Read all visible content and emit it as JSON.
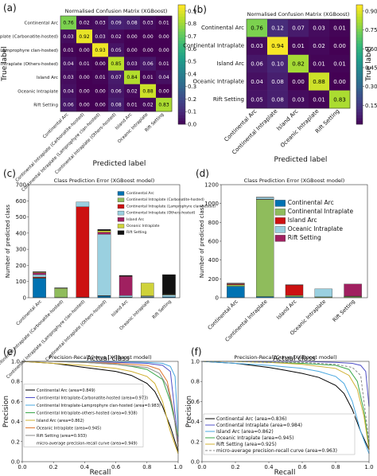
{
  "panel_labels": [
    "(a)",
    "(b)",
    "(c)",
    "(d)",
    "(e)",
    "(f)"
  ],
  "colors": {
    "viridis": [
      "#440154",
      "#482878",
      "#3e4989",
      "#31688e",
      "#26828e",
      "#1f9e89",
      "#35b779",
      "#6ece58",
      "#b5de2b",
      "#fde725"
    ],
    "bars_c": [
      "#0072b2",
      "#8fbc5c",
      "#cc1111",
      "#9ad0e0",
      "#a02060",
      "#cfd23a",
      "#111111"
    ],
    "bars_d": [
      "#0072b2",
      "#8fbc5c",
      "#cc1111",
      "#9ad0e0",
      "#a02060"
    ],
    "curves_e": [
      "#000000",
      "#5050c8",
      "#49a8e0",
      "#3aa84a",
      "#d0b030",
      "#e07830",
      "#888888"
    ],
    "curves_f": [
      "#000000",
      "#5050c8",
      "#49a8e0",
      "#3aa84a",
      "#d0b030",
      "#888888"
    ]
  },
  "chart_data": [
    {
      "panel": "(a)",
      "type": "heatmap",
      "title": "Normalised Confusion Matrix (XGBoost)",
      "xlabel": "Predicted label",
      "ylabel": "True label",
      "labels": [
        "Continental Arc",
        "Continental Intraplate (Carbonatite-hosted)",
        "Continental Intraplate (Lamprophyre clan-hosted)",
        "Continental Intraplate (Others-hosted)",
        "Island Arc",
        "Oceanic Intraplate",
        "Rift Setting"
      ],
      "matrix": [
        [
          0.76,
          0.02,
          0.03,
          0.09,
          0.08,
          0.03,
          0.01
        ],
        [
          0.03,
          0.92,
          0.03,
          0.02,
          0.0,
          0.0,
          0.0
        ],
        [
          0.01,
          0.0,
          0.93,
          0.05,
          0.0,
          0.0,
          0.0
        ],
        [
          0.04,
          0.01,
          0.0,
          0.85,
          0.03,
          0.06,
          0.01
        ],
        [
          0.03,
          0.0,
          0.01,
          0.07,
          0.84,
          0.01,
          0.04
        ],
        [
          0.04,
          0.0,
          0.0,
          0.06,
          0.02,
          0.88,
          0.0
        ],
        [
          0.06,
          0.0,
          0.0,
          0.08,
          0.01,
          0.02,
          0.83
        ]
      ],
      "colorbar_ticks": [
        "0.9",
        "0.8",
        "0.7",
        "0.6",
        "0.5",
        "0.4",
        "0.3",
        "0.2",
        "0.1",
        "0.0"
      ],
      "vlim": [
        0,
        0.95
      ]
    },
    {
      "panel": "(b)",
      "type": "heatmap",
      "title": "Normalised Confusion Matrix (XGBoost)",
      "xlabel": "Predicted label",
      "ylabel": "True label",
      "labels": [
        "Continental Arc",
        "Continental Intraplate",
        "Island Arc",
        "Oceanic Intraplate",
        "Rift Setting"
      ],
      "matrix": [
        [
          0.76,
          0.12,
          0.07,
          0.03,
          0.01
        ],
        [
          0.03,
          0.94,
          0.01,
          0.02,
          0.0
        ],
        [
          0.06,
          0.1,
          0.82,
          0.01,
          0.01
        ],
        [
          0.04,
          0.08,
          0.0,
          0.88,
          0.0
        ],
        [
          0.05,
          0.08,
          0.03,
          0.01,
          0.83
        ]
      ],
      "colorbar_ticks": [
        "0.90",
        "0.75",
        "0.60",
        "0.45",
        "0.30",
        "0.15"
      ],
      "vlim": [
        0,
        0.95
      ]
    },
    {
      "panel": "(c)",
      "type": "bar",
      "title": "Class Prediction Error (XGBoost model)",
      "xlabel": "Actual class",
      "ylabel": "Number of predicted class",
      "categories": [
        "Continental Arc",
        "Continental Intraplate (Carbonatite-hosted)",
        "Continental Intraplate (Lamprophyre clan-hosted)",
        "Continental Intraplate (Others-hosted)",
        "Island Arc",
        "Oceanic Intraplate",
        "Rift Setting"
      ],
      "series": [
        {
          "name": "Continental Arc",
          "values": [
            120,
            2,
            3,
            10,
            3,
            3,
            5
          ]
        },
        {
          "name": "Continental Intraplate (Carbonatite-hosted)",
          "values": [
            3,
            56,
            0,
            2,
            0,
            0,
            0
          ]
        },
        {
          "name": "Continental Intraplate (Lamprophyre clan-hosted)",
          "values": [
            5,
            2,
            560,
            1,
            1,
            0,
            0
          ]
        },
        {
          "name": "Continental Intraplate (Others-hosted)",
          "values": [
            15,
            2,
            30,
            380,
            10,
            6,
            12
          ]
        },
        {
          "name": "Island Arc",
          "values": [
            12,
            0,
            0,
            12,
            118,
            2,
            1
          ]
        },
        {
          "name": "Oceanic Intraplate",
          "values": [
            4,
            0,
            0,
            10,
            1,
            80,
            3
          ]
        },
        {
          "name": "Rift Setting",
          "values": [
            2,
            0,
            0,
            8,
            5,
            0,
            122
          ]
        }
      ],
      "yticks": [
        0,
        100,
        200,
        300,
        400,
        500,
        600,
        700
      ],
      "ylim": [
        0,
        700
      ]
    },
    {
      "panel": "(d)",
      "type": "bar",
      "title": "Class Prediction Error (XGBoost model)",
      "xlabel": "Actual class",
      "ylabel": "Number of predicted class",
      "categories": [
        "Continental Arc",
        "Continental Intraplate",
        "Island Arc",
        "Oceanic Intraplate",
        "Rift Setting"
      ],
      "series": [
        {
          "name": "Continental Arc",
          "values": [
            120,
            12,
            10,
            2,
            3
          ]
        },
        {
          "name": "Continental Intraplate",
          "values": [
            18,
            1030,
            15,
            7,
            10
          ]
        },
        {
          "name": "Island Arc",
          "values": [
            10,
            3,
            110,
            0,
            3
          ]
        },
        {
          "name": "Oceanic Intraplate",
          "values": [
            5,
            20,
            1,
            85,
            1
          ]
        },
        {
          "name": "Rift Setting",
          "values": [
            2,
            2,
            2,
            0,
            128
          ]
        }
      ],
      "yticks": [
        0,
        200,
        400,
        600,
        800,
        1000,
        1200
      ],
      "ylim": [
        0,
        1200
      ]
    },
    {
      "panel": "(e)",
      "type": "line",
      "title": "Precision-Recall Curve (XGBoost model)",
      "xlabel": "Recall",
      "ylabel": "Precision",
      "xticks": [
        "0.0",
        "0.2",
        "0.4",
        "0.6",
        "0.8",
        "1.0"
      ],
      "yticks": [
        "0.0",
        "0.2",
        "0.4",
        "0.6",
        "0.8",
        "1.0"
      ],
      "xlim": [
        0,
        1
      ],
      "ylim": [
        0,
        1
      ],
      "legend_position": "lower left",
      "series": [
        {
          "name": "Continental Arc (area=0.849)",
          "x": [
            0,
            0.1,
            0.2,
            0.3,
            0.4,
            0.5,
            0.6,
            0.7,
            0.8,
            0.85,
            0.9,
            0.95,
            1.0
          ],
          "y": [
            1,
            0.99,
            0.98,
            0.96,
            0.94,
            0.92,
            0.9,
            0.86,
            0.78,
            0.7,
            0.55,
            0.35,
            0.1
          ]
        },
        {
          "name": "Continental Intraplate-Carbonatite-hosted (area=0.973)",
          "x": [
            0,
            0.2,
            0.4,
            0.6,
            0.8,
            0.9,
            0.95,
            1.0
          ],
          "y": [
            1,
            1,
            1,
            0.99,
            0.98,
            0.96,
            0.9,
            0.2
          ]
        },
        {
          "name": "Continental Intraplate-Lamprophyre clan-hosted (area=0.983)",
          "x": [
            0,
            0.2,
            0.4,
            0.6,
            0.8,
            0.9,
            0.95,
            0.98,
            1.0
          ],
          "y": [
            1,
            1,
            1,
            1,
            0.99,
            0.98,
            0.95,
            0.85,
            0.3
          ]
        },
        {
          "name": "Continental Intraplate-others-hosted (area=0.938)",
          "x": [
            0,
            0.2,
            0.4,
            0.6,
            0.7,
            0.8,
            0.9,
            0.95,
            1.0
          ],
          "y": [
            1,
            1,
            0.99,
            0.97,
            0.95,
            0.92,
            0.82,
            0.6,
            0.25
          ]
        },
        {
          "name": "Island Arc (area=0.862)",
          "x": [
            0,
            0.2,
            0.4,
            0.6,
            0.7,
            0.8,
            0.85,
            0.9,
            0.95,
            1.0
          ],
          "y": [
            1,
            0.98,
            0.96,
            0.93,
            0.9,
            0.85,
            0.78,
            0.6,
            0.3,
            0.08
          ]
        },
        {
          "name": "Oceanic Intraplate (area=0.945)",
          "x": [
            0,
            0.2,
            0.4,
            0.6,
            0.8,
            0.88,
            0.93,
            0.97,
            1.0
          ],
          "y": [
            1,
            1,
            0.99,
            0.98,
            0.96,
            0.92,
            0.8,
            0.5,
            0.15
          ]
        },
        {
          "name": "Rift Setting (area=0.933)",
          "x": [
            0,
            0.2,
            0.4,
            0.6,
            0.8,
            0.88,
            0.93,
            0.97,
            1.0
          ],
          "y": [
            1,
            1,
            0.99,
            0.97,
            0.94,
            0.88,
            0.75,
            0.5,
            0.12
          ]
        },
        {
          "name": "micro-average precision-recall curve (area=0.949)",
          "x": [
            0,
            0.2,
            0.4,
            0.6,
            0.8,
            0.9,
            0.95,
            1.0
          ],
          "y": [
            1,
            0.99,
            0.99,
            0.98,
            0.96,
            0.92,
            0.82,
            0.15
          ]
        }
      ]
    },
    {
      "panel": "(f)",
      "type": "line",
      "title": "Precision-Recall Curve (XGBoost model)",
      "xlabel": "Recall",
      "ylabel": "Precision",
      "xticks": [
        "0.0",
        "0.2",
        "0.4",
        "0.6",
        "0.8",
        "1.0"
      ],
      "yticks": [
        "0.0",
        "0.2",
        "0.4",
        "0.6",
        "0.8",
        "1.0"
      ],
      "xlim": [
        0,
        1
      ],
      "ylim": [
        0,
        1
      ],
      "legend_position": "lower left",
      "series": [
        {
          "name": "Continental Arc (area=0.836)",
          "x": [
            0,
            0.1,
            0.2,
            0.3,
            0.4,
            0.5,
            0.6,
            0.7,
            0.8,
            0.85,
            0.9,
            0.95,
            1.0
          ],
          "y": [
            1,
            0.99,
            0.98,
            0.96,
            0.94,
            0.91,
            0.88,
            0.84,
            0.76,
            0.68,
            0.52,
            0.3,
            0.12
          ]
        },
        {
          "name": "Continental Intraplate (area=0.984)",
          "x": [
            0,
            0.2,
            0.4,
            0.6,
            0.8,
            0.9,
            0.95,
            0.98,
            1.0
          ],
          "y": [
            1,
            1,
            1,
            1,
            0.99,
            0.98,
            0.96,
            0.9,
            0.55
          ]
        },
        {
          "name": "Island Arc (area=0.862)",
          "x": [
            0,
            0.2,
            0.4,
            0.6,
            0.7,
            0.8,
            0.85,
            0.9,
            0.95,
            1.0
          ],
          "y": [
            1,
            0.98,
            0.96,
            0.93,
            0.9,
            0.85,
            0.78,
            0.6,
            0.3,
            0.08
          ]
        },
        {
          "name": "Oceanic Intraplate (area=0.945)",
          "x": [
            0,
            0.2,
            0.4,
            0.6,
            0.8,
            0.88,
            0.93,
            0.97,
            1.0
          ],
          "y": [
            1,
            1,
            0.99,
            0.98,
            0.96,
            0.92,
            0.8,
            0.5,
            0.15
          ]
        },
        {
          "name": "Rift Setting (area=0.925)",
          "x": [
            0,
            0.2,
            0.4,
            0.6,
            0.8,
            0.88,
            0.93,
            0.97,
            1.0
          ],
          "y": [
            1,
            1,
            0.99,
            0.97,
            0.93,
            0.86,
            0.72,
            0.45,
            0.12
          ]
        },
        {
          "name": "micro-average precision-recall curve (area=0.963)",
          "x": [
            0,
            0.2,
            0.4,
            0.6,
            0.8,
            0.9,
            0.95,
            1.0
          ],
          "y": [
            1,
            1,
            0.99,
            0.99,
            0.97,
            0.94,
            0.86,
            0.2
          ]
        }
      ]
    }
  ]
}
